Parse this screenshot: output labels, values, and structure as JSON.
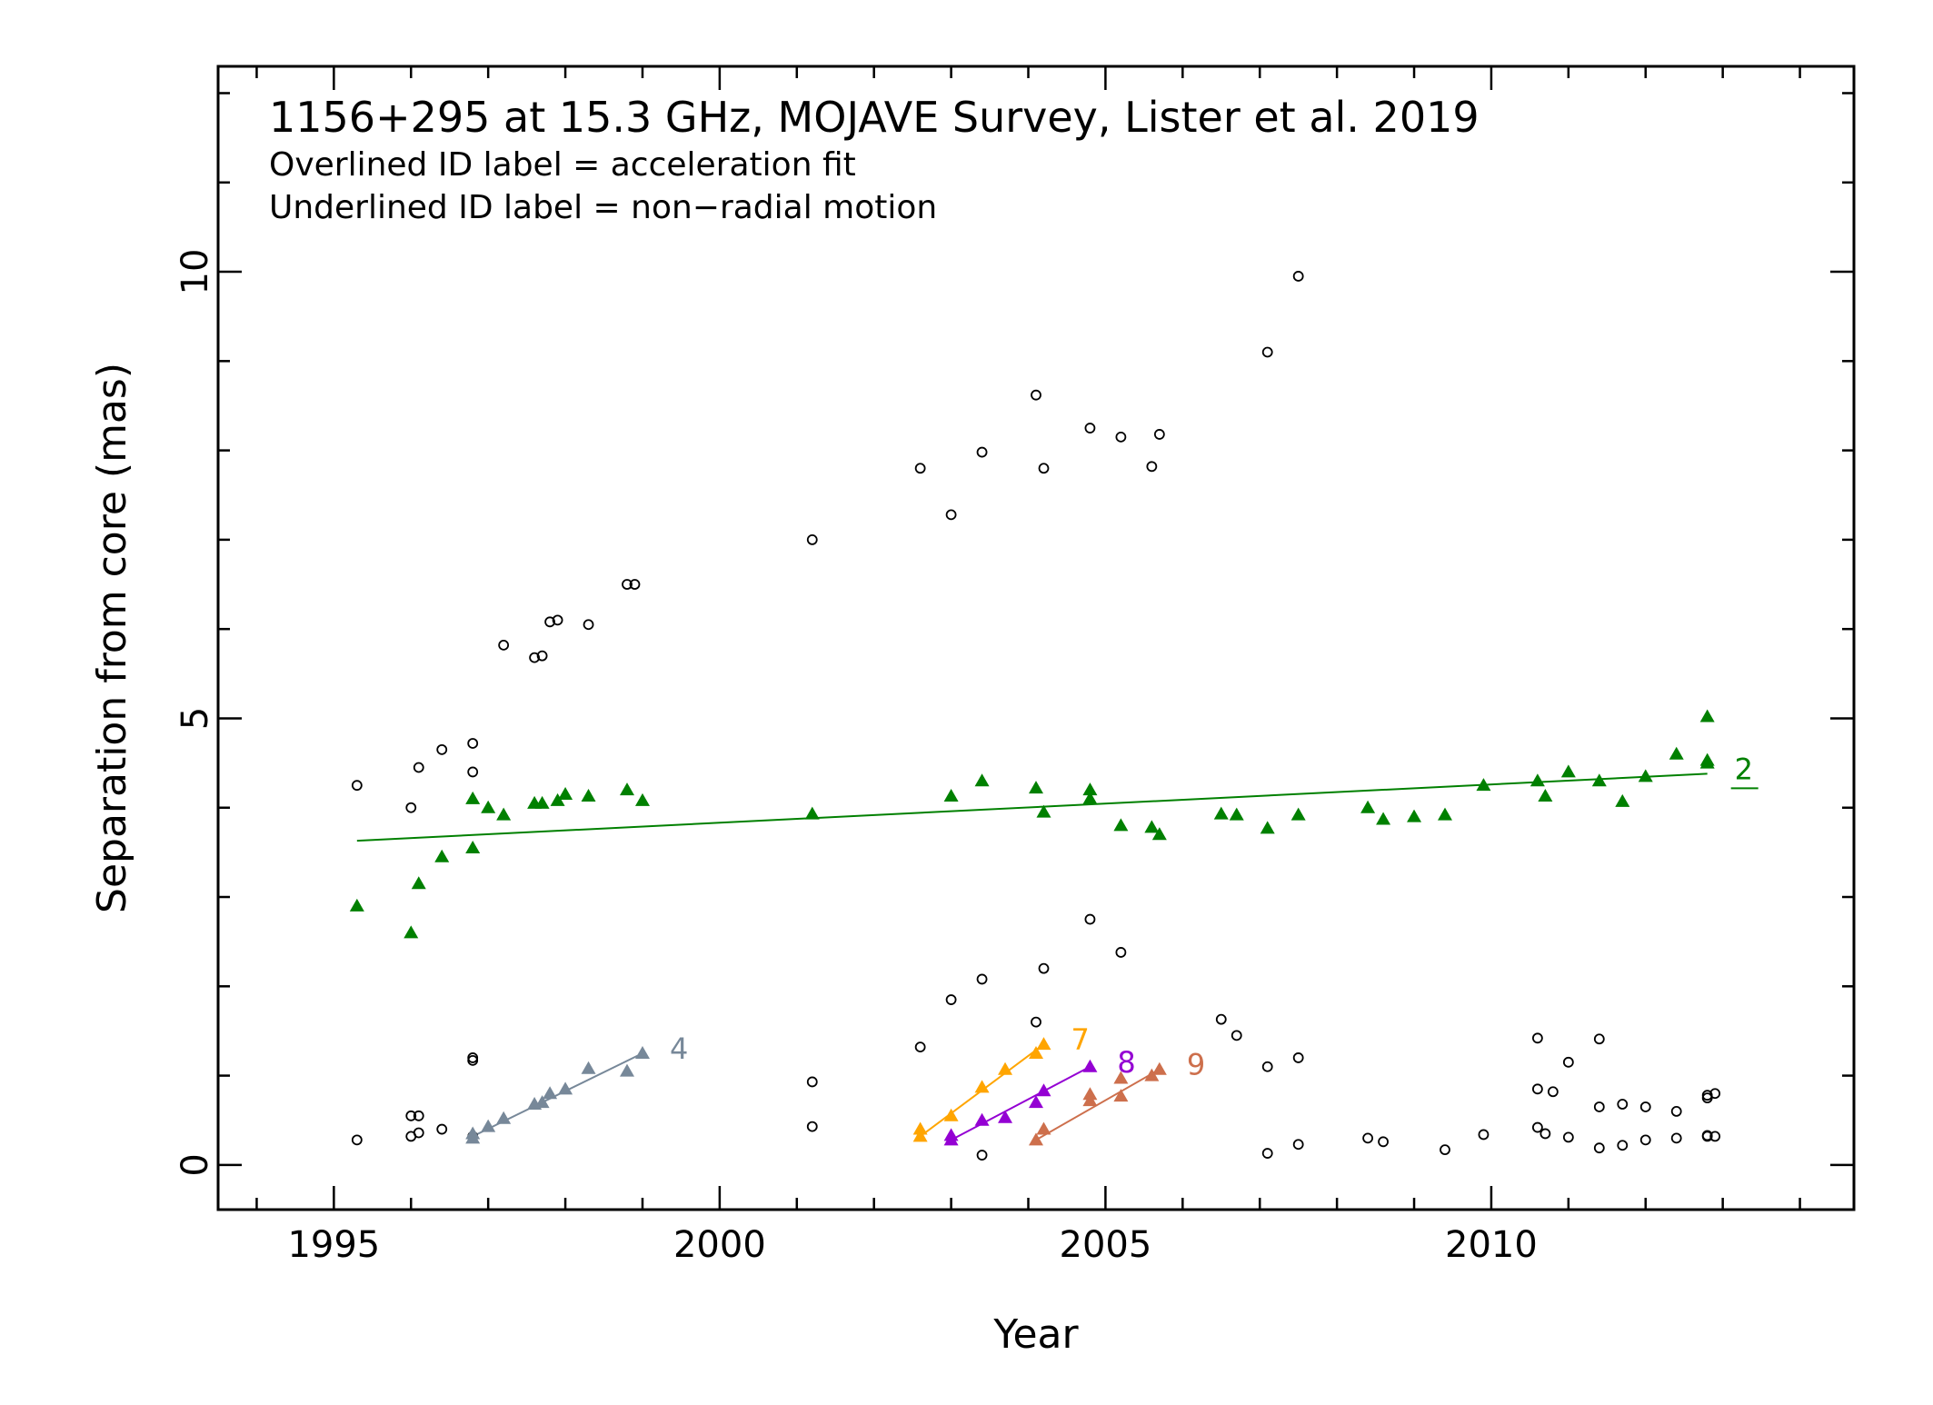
{
  "chart_data": {
    "type": "scatter",
    "title": "1156+295 at 15.3 GHz, MOJAVE Survey, Lister et al. 2019",
    "subtitle_lines": [
      "Overlined ID label = acceleration fit",
      "Underlined ID label = non−radial motion"
    ],
    "xlabel": "Year",
    "ylabel": "Separation from core (mas)",
    "xlim": [
      1993.5,
      2014.7
    ],
    "ylim": [
      -0.5,
      12.3
    ],
    "x_ticks": [
      1995,
      2000,
      2005,
      2010
    ],
    "y_ticks": [
      0,
      5,
      10
    ],
    "x_minor_step": 1,
    "y_minor_step": 1,
    "grid": false,
    "legend": "none",
    "unassigned": {
      "marker": "open-circle",
      "color": "#000000",
      "x": [
        1995.3,
        1995.3,
        1996.0,
        1996.0,
        1996.1,
        1996.1,
        1996.0,
        1996.1,
        1996.4,
        1996.4,
        1996.8,
        1996.8,
        1996.8,
        1996.8,
        1996.8,
        1997.2,
        1997.6,
        1997.7,
        1997.8,
        1997.9,
        1998.3,
        1998.8,
        1998.9,
        2001.2,
        2001.2,
        2001.2,
        2002.6,
        2002.6,
        2003.0,
        2003.0,
        2003.4,
        2003.4,
        2003.4,
        2004.1,
        2004.1,
        2004.2,
        2004.2,
        2004.8,
        2004.8,
        2005.2,
        2005.2,
        2005.6,
        2005.7,
        2006.5,
        2006.7,
        2007.1,
        2007.1,
        2007.1,
        2007.5,
        2007.5,
        2007.5,
        2008.4,
        2008.6,
        2009.4,
        2009.9,
        2010.6,
        2010.6,
        2010.6,
        2010.7,
        2010.8,
        2011.0,
        2011.0,
        2011.4,
        2011.4,
        2011.4,
        2011.7,
        2011.7,
        2012.0,
        2012.0,
        2012.4,
        2012.4,
        2012.8,
        2012.8,
        2012.8,
        2012.8,
        2012.9,
        2012.9
      ],
      "y": [
        0.28,
        4.25,
        4.0,
        0.32,
        0.36,
        4.45,
        0.55,
        0.55,
        0.4,
        4.65,
        4.72,
        4.4,
        1.2,
        1.17,
        0.32,
        5.82,
        5.68,
        5.7,
        6.08,
        6.1,
        6.05,
        6.5,
        6.5,
        7.0,
        0.93,
        0.43,
        7.8,
        1.32,
        7.28,
        1.85,
        7.98,
        2.08,
        0.11,
        8.62,
        1.6,
        7.8,
        2.2,
        8.25,
        2.75,
        8.15,
        2.38,
        7.82,
        8.18,
        1.63,
        1.45,
        9.1,
        1.1,
        0.13,
        9.95,
        1.2,
        0.23,
        0.3,
        0.26,
        0.17,
        0.34,
        1.42,
        0.85,
        0.42,
        0.35,
        0.82,
        1.15,
        0.31,
        1.41,
        0.65,
        0.19,
        0.68,
        0.22,
        0.65,
        0.28,
        0.6,
        0.3,
        0.75,
        0.78,
        0.33,
        0.32,
        0.32,
        0.8
      ]
    },
    "components": [
      {
        "id": "2",
        "color": "#008000",
        "label_style": "underlined",
        "x": [
          1995.3,
          1996.0,
          1996.1,
          1996.4,
          1996.8,
          1996.8,
          1997.0,
          1997.2,
          1997.6,
          1997.7,
          1997.9,
          1998.0,
          1998.3,
          1998.8,
          1999.0,
          2001.2,
          2003.0,
          2003.4,
          2004.1,
          2004.2,
          2004.8,
          2004.8,
          2005.2,
          2005.6,
          2005.7,
          2006.5,
          2006.7,
          2007.1,
          2007.5,
          2008.4,
          2008.6,
          2009.0,
          2009.4,
          2009.9,
          2010.6,
          2010.7,
          2011.0,
          2011.4,
          2011.7,
          2012.0,
          2012.4,
          2012.8,
          2012.8,
          2012.8
        ],
        "y": [
          2.9,
          2.6,
          3.15,
          3.45,
          3.55,
          4.1,
          4.0,
          3.92,
          4.05,
          4.05,
          4.08,
          4.15,
          4.13,
          4.2,
          4.08,
          3.93,
          4.13,
          4.3,
          4.22,
          3.95,
          4.2,
          4.1,
          3.8,
          3.78,
          3.7,
          3.93,
          3.92,
          3.77,
          3.92,
          4.0,
          3.87,
          3.9,
          3.92,
          4.25,
          4.3,
          4.13,
          4.4,
          4.3,
          4.07,
          4.35,
          4.6,
          4.53,
          5.02,
          4.5
        ],
        "fit": {
          "x": [
            1995.3,
            2012.8
          ],
          "y": [
            3.63,
            4.38
          ]
        }
      },
      {
        "id": "4",
        "color": "#778899",
        "label_style": "plain",
        "x": [
          1996.8,
          1996.8,
          1997.0,
          1997.2,
          1997.6,
          1997.7,
          1997.8,
          1998.0,
          1998.3,
          1998.8,
          1999.0
        ],
        "y": [
          0.3,
          0.35,
          0.43,
          0.52,
          0.68,
          0.7,
          0.8,
          0.85,
          1.08,
          1.05,
          1.25
        ],
        "fit": {
          "x": [
            1996.8,
            1999.0
          ],
          "y": [
            0.32,
            1.25
          ]
        }
      },
      {
        "id": "7",
        "color": "#FFA500",
        "label_style": "plain",
        "x": [
          2002.6,
          2002.6,
          2003.0,
          2003.4,
          2003.7,
          2004.1,
          2004.2
        ],
        "y": [
          0.32,
          0.4,
          0.55,
          0.87,
          1.07,
          1.25,
          1.35
        ],
        "fit": {
          "x": [
            2002.6,
            2004.2
          ],
          "y": [
            0.32,
            1.35
          ]
        }
      },
      {
        "id": "8",
        "color": "#9400D3",
        "label_style": "plain",
        "x": [
          2003.0,
          2003.0,
          2003.4,
          2003.7,
          2004.1,
          2004.2,
          2004.8
        ],
        "y": [
          0.28,
          0.33,
          0.5,
          0.53,
          0.7,
          0.83,
          1.1
        ],
        "fit": {
          "x": [
            2003.0,
            2004.8
          ],
          "y": [
            0.28,
            1.1
          ]
        }
      },
      {
        "id": "9",
        "color": "#CD6F4C",
        "label_style": "plain",
        "x": [
          2004.1,
          2004.2,
          2004.8,
          2004.8,
          2005.2,
          2005.2,
          2005.6,
          2005.7
        ],
        "y": [
          0.28,
          0.4,
          0.72,
          0.79,
          0.77,
          0.97,
          1.0,
          1.07
        ],
        "fit": {
          "x": [
            2004.1,
            2005.7
          ],
          "y": [
            0.28,
            1.07
          ]
        }
      }
    ]
  }
}
